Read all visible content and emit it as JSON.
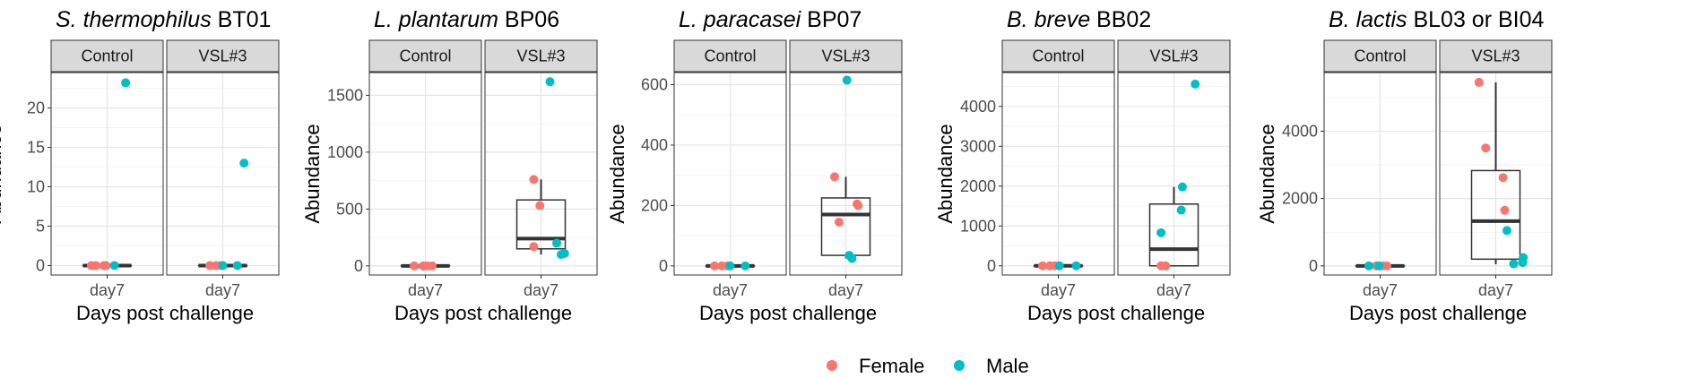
{
  "legend": [
    {
      "label": "Female",
      "color": "#F8766D"
    },
    {
      "label": "Male",
      "color": "#00BFC4"
    }
  ],
  "chart_data": [
    {
      "type": "boxplot",
      "title_italic": "S. thermophilus",
      "title_rest": " BT01",
      "facets": [
        "Control",
        "VSL#3"
      ],
      "xlabel": "Days post challenge",
      "ylabel": "Abundance",
      "x_tick": "day7",
      "ylim": [
        -1.2,
        24.5
      ],
      "yticks": [
        0,
        5,
        10,
        15,
        20
      ],
      "ytick_labels": [
        "0",
        "5",
        "10",
        "15",
        "20"
      ],
      "grid": true,
      "boxes": [
        {
          "facet": "Control",
          "q1": 0,
          "median": 0,
          "q3": 0,
          "whisker_low": 0,
          "whisker_high": 0
        },
        {
          "facet": "VSL#3",
          "q1": 0,
          "median": 0,
          "q3": 0,
          "whisker_low": 0,
          "whisker_high": 0
        }
      ],
      "points": [
        {
          "facet": "Control",
          "sex": "Female",
          "jitter": -0.28,
          "value": 0
        },
        {
          "facet": "Control",
          "sex": "Female",
          "jitter": -0.2,
          "value": 0
        },
        {
          "facet": "Control",
          "sex": "Female",
          "jitter": -0.06,
          "value": 0
        },
        {
          "facet": "Control",
          "sex": "Female",
          "jitter": -0.02,
          "value": 0
        },
        {
          "facet": "Control",
          "sex": "Male",
          "jitter": 0.13,
          "value": 0
        },
        {
          "facet": "Control",
          "sex": "Male",
          "jitter": 0.33,
          "value": 23.2
        },
        {
          "facet": "VSL#3",
          "sex": "Female",
          "jitter": -0.23,
          "value": 0
        },
        {
          "facet": "VSL#3",
          "sex": "Female",
          "jitter": -0.12,
          "value": 0
        },
        {
          "facet": "VSL#3",
          "sex": "Female",
          "jitter": -0.04,
          "value": 0
        },
        {
          "facet": "VSL#3",
          "sex": "Male",
          "jitter": 0.0,
          "value": 0
        },
        {
          "facet": "VSL#3",
          "sex": "Male",
          "jitter": 0.26,
          "value": 0
        },
        {
          "facet": "VSL#3",
          "sex": "Male",
          "jitter": 0.38,
          "value": 13.0
        }
      ]
    },
    {
      "type": "boxplot",
      "title_italic": "L. plantarum",
      "title_rest": " BP06",
      "facets": [
        "Control",
        "VSL#3"
      ],
      "xlabel": "Days post challenge",
      "ylabel": "Abundance",
      "x_tick": "day7",
      "ylim": [
        -80,
        1700
      ],
      "yticks": [
        0,
        500,
        1000,
        1500
      ],
      "ytick_labels": [
        "0",
        "500",
        "1000",
        "1500"
      ],
      "grid": true,
      "boxes": [
        {
          "facet": "Control",
          "q1": 0,
          "median": 0,
          "q3": 0,
          "whisker_low": 0,
          "whisker_high": 0
        },
        {
          "facet": "VSL#3",
          "q1": 150,
          "median": 240,
          "q3": 580,
          "whisker_low": 100,
          "whisker_high": 760
        }
      ],
      "points": [
        {
          "facet": "Control",
          "sex": "Female",
          "jitter": -0.2,
          "value": 0
        },
        {
          "facet": "Control",
          "sex": "Female",
          "jitter": -0.04,
          "value": 0
        },
        {
          "facet": "Control",
          "sex": "Female",
          "jitter": 0.03,
          "value": 0
        },
        {
          "facet": "Control",
          "sex": "Female",
          "jitter": 0.12,
          "value": 0
        },
        {
          "facet": "VSL#3",
          "sex": "Female",
          "jitter": -0.13,
          "value": 760
        },
        {
          "facet": "VSL#3",
          "sex": "Female",
          "jitter": -0.02,
          "value": 530
        },
        {
          "facet": "VSL#3",
          "sex": "Female",
          "jitter": -0.13,
          "value": 170
        },
        {
          "facet": "VSL#3",
          "sex": "Male",
          "jitter": 0.16,
          "value": 1620
        },
        {
          "facet": "VSL#3",
          "sex": "Male",
          "jitter": 0.28,
          "value": 200
        },
        {
          "facet": "VSL#3",
          "sex": "Male",
          "jitter": 0.36,
          "value": 100
        },
        {
          "facet": "VSL#3",
          "sex": "Male",
          "jitter": 0.42,
          "value": 110
        }
      ]
    },
    {
      "type": "boxplot",
      "title_italic": "L. paracasei",
      "title_rest": " BP07",
      "facets": [
        "Control",
        "VSL#3"
      ],
      "xlabel": "Days post challenge",
      "ylabel": "Abundance",
      "x_tick": "day7",
      "ylim": [
        -30,
        640
      ],
      "yticks": [
        0,
        200,
        400,
        600
      ],
      "ytick_labels": [
        "0",
        "200",
        "400",
        "600"
      ],
      "grid": true,
      "boxes": [
        {
          "facet": "Control",
          "q1": 0,
          "median": 0,
          "q3": 0,
          "whisker_low": 0,
          "whisker_high": 0
        },
        {
          "facet": "VSL#3",
          "q1": 35,
          "median": 170,
          "q3": 225,
          "whisker_low": 25,
          "whisker_high": 295
        }
      ],
      "points": [
        {
          "facet": "Control",
          "sex": "Female",
          "jitter": -0.28,
          "value": 0
        },
        {
          "facet": "Control",
          "sex": "Female",
          "jitter": -0.15,
          "value": 0
        },
        {
          "facet": "Control",
          "sex": "Female",
          "jitter": -0.05,
          "value": 0
        },
        {
          "facet": "Control",
          "sex": "Male",
          "jitter": 0.0,
          "value": 0
        },
        {
          "facet": "Control",
          "sex": "Male",
          "jitter": 0.27,
          "value": 0
        },
        {
          "facet": "VSL#3",
          "sex": "Female",
          "jitter": -0.2,
          "value": 295
        },
        {
          "facet": "VSL#3",
          "sex": "Female",
          "jitter": -0.12,
          "value": 145
        },
        {
          "facet": "VSL#3",
          "sex": "Female",
          "jitter": 0.2,
          "value": 205
        },
        {
          "facet": "VSL#3",
          "sex": "Female",
          "jitter": 0.22,
          "value": 200
        },
        {
          "facet": "VSL#3",
          "sex": "Male",
          "jitter": 0.02,
          "value": 615
        },
        {
          "facet": "VSL#3",
          "sex": "Male",
          "jitter": 0.06,
          "value": 35
        },
        {
          "facet": "VSL#3",
          "sex": "Male",
          "jitter": 0.11,
          "value": 25
        }
      ]
    },
    {
      "type": "boxplot",
      "title_italic": "B. breve",
      "title_rest": " BB02",
      "facets": [
        "Control",
        "VSL#3"
      ],
      "xlabel": "Days post challenge",
      "ylabel": "Abundance",
      "x_tick": "day7",
      "ylim": [
        -230,
        4850
      ],
      "yticks": [
        0,
        1000,
        2000,
        3000,
        4000
      ],
      "ytick_labels": [
        "0",
        "1000",
        "2000",
        "3000",
        "4000"
      ],
      "grid": true,
      "boxes": [
        {
          "facet": "Control",
          "q1": 0,
          "median": 0,
          "q3": 0,
          "whisker_low": 0,
          "whisker_high": 0
        },
        {
          "facet": "VSL#3",
          "q1": 0,
          "median": 420,
          "q3": 1550,
          "whisker_low": 0,
          "whisker_high": 1980
        }
      ],
      "points": [
        {
          "facet": "Control",
          "sex": "Female",
          "jitter": -0.28,
          "value": 0
        },
        {
          "facet": "Control",
          "sex": "Female",
          "jitter": -0.15,
          "value": 0
        },
        {
          "facet": "Control",
          "sex": "Female",
          "jitter": -0.06,
          "value": 0
        },
        {
          "facet": "Control",
          "sex": "Male",
          "jitter": 0.02,
          "value": 0
        },
        {
          "facet": "Control",
          "sex": "Male",
          "jitter": 0.32,
          "value": 0
        },
        {
          "facet": "VSL#3",
          "sex": "Female",
          "jitter": -0.23,
          "value": 0
        },
        {
          "facet": "VSL#3",
          "sex": "Female",
          "jitter": -0.15,
          "value": 0
        },
        {
          "facet": "VSL#3",
          "sex": "Male",
          "jitter": -0.23,
          "value": 830
        },
        {
          "facet": "VSL#3",
          "sex": "Male",
          "jitter": 0.15,
          "value": 1980
        },
        {
          "facet": "VSL#3",
          "sex": "Male",
          "jitter": 0.13,
          "value": 1400
        },
        {
          "facet": "VSL#3",
          "sex": "Male",
          "jitter": 0.38,
          "value": 4560
        }
      ]
    },
    {
      "type": "boxplot",
      "title_italic": "B. lactis",
      "title_rest": " BL03 or BI04",
      "facets": [
        "Control",
        "VSL#3"
      ],
      "xlabel": "Days post challenge",
      "ylabel": "Abundance",
      "x_tick": "day7",
      "ylim": [
        -270,
        5740
      ],
      "yticks": [
        0,
        2000,
        4000
      ],
      "ytick_labels": [
        "0",
        "2000",
        "4000"
      ],
      "grid": true,
      "boxes": [
        {
          "facet": "Control",
          "q1": 0,
          "median": 0,
          "q3": 0,
          "whisker_low": 0,
          "whisker_high": 0
        },
        {
          "facet": "VSL#3",
          "q1": 200,
          "median": 1330,
          "q3": 2830,
          "whisker_low": 50,
          "whisker_high": 5450
        }
      ],
      "points": [
        {
          "facet": "Control",
          "sex": "Female",
          "jitter": -0.07,
          "value": 0
        },
        {
          "facet": "Control",
          "sex": "Female",
          "jitter": 0.05,
          "value": 0
        },
        {
          "facet": "Control",
          "sex": "Female",
          "jitter": 0.12,
          "value": 0
        },
        {
          "facet": "Control",
          "sex": "Male",
          "jitter": -0.2,
          "value": 0
        },
        {
          "facet": "Control",
          "sex": "Male",
          "jitter": -0.02,
          "value": 0
        },
        {
          "facet": "VSL#3",
          "sex": "Female",
          "jitter": -0.3,
          "value": 5450
        },
        {
          "facet": "VSL#3",
          "sex": "Female",
          "jitter": -0.18,
          "value": 3500
        },
        {
          "facet": "VSL#3",
          "sex": "Female",
          "jitter": 0.13,
          "value": 2620
        },
        {
          "facet": "VSL#3",
          "sex": "Female",
          "jitter": 0.16,
          "value": 1650
        },
        {
          "facet": "VSL#3",
          "sex": "Male",
          "jitter": 0.2,
          "value": 1050
        },
        {
          "facet": "VSL#3",
          "sex": "Male",
          "jitter": 0.32,
          "value": 60
        },
        {
          "facet": "VSL#3",
          "sex": "Male",
          "jitter": 0.49,
          "value": 250
        },
        {
          "facet": "VSL#3",
          "sex": "Male",
          "jitter": 0.48,
          "value": 100
        }
      ]
    }
  ]
}
